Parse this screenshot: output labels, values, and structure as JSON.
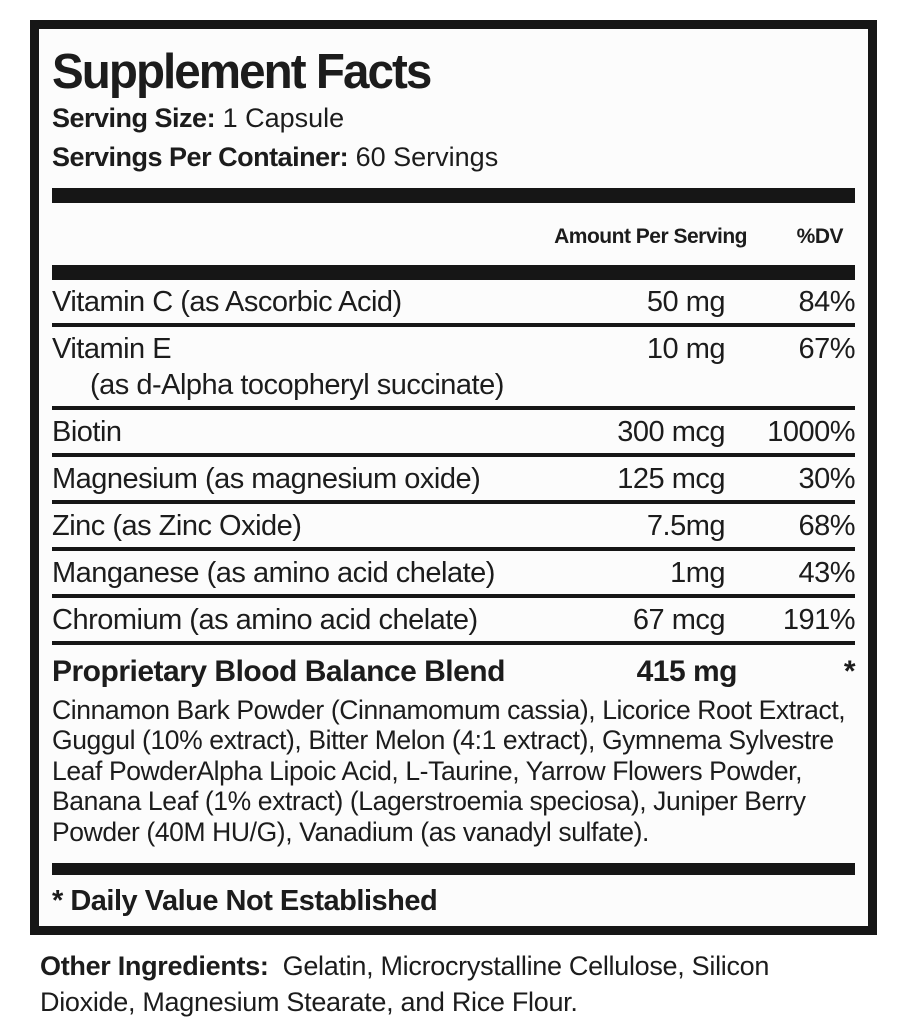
{
  "label": {
    "title": "Supplement Facts",
    "serving_size_label": "Serving Size:",
    "serving_size_value": "1 Capsule",
    "servings_per_container_label": "Servings Per Container:",
    "servings_per_container_value": "60 Servings",
    "columns": {
      "amount": "Amount Per Serving",
      "dv": "%DV"
    },
    "rows": [
      {
        "name": "Vitamin C (as Ascorbic Acid)",
        "amount": "50 mg",
        "dv": "84%"
      },
      {
        "name": "Vitamin E",
        "name2": "(as d-Alpha tocopheryl succinate)",
        "amount": "10 mg",
        "dv": "67%"
      },
      {
        "name": "Biotin",
        "amount": "300 mcg",
        "dv": "1000%"
      },
      {
        "name": "Magnesium (as magnesium oxide)",
        "amount": "125 mcg",
        "dv": "30%"
      },
      {
        "name": "Zinc (as Zinc Oxide)",
        "amount": "7.5mg",
        "dv": "68%"
      },
      {
        "name": "Manganese (as amino acid chelate)",
        "amount": "1mg",
        "dv": "43%"
      },
      {
        "name": "Chromium (as amino acid chelate)",
        "amount": "67 mcg",
        "dv": "191%"
      }
    ],
    "blend": {
      "name": "Proprietary Blood Balance Blend",
      "amount": "415 mg",
      "dv": "*",
      "description": "Cinnamon Bark Powder (Cinnamomum cassia), Licorice Root Extract, Guggul (10% extract), Bitter Melon (4:1 extract), Gymnema Sylvestre Leaf PowderAlpha Lipoic Acid, L-Taurine, Yarrow Flowers Powder, Banana Leaf (1% extract) (Lagerstroemia speciosa), Juniper Berry Powder (40M HU/G), Vanadium (as vanadyl sulfate)."
    },
    "footnote": "* Daily Value Not Established"
  },
  "other_ingredients": {
    "label": "Other Ingredients:",
    "value": "Gelatin, Microcrystalline Cellulose, Silicon Dioxide, Magnesium Stearate, and Rice Flour."
  },
  "colors": {
    "ink": "#1c1c1c",
    "border": "#161616",
    "label_background": "#fcfcfc",
    "page_background": "#ffffff"
  }
}
